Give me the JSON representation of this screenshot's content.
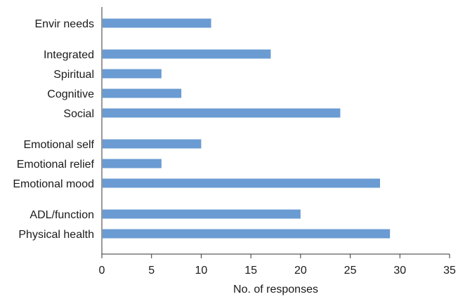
{
  "chart_data": {
    "type": "bar",
    "orientation": "horizontal",
    "categories": [
      "Envir needs",
      "Integrated",
      "Spiritual",
      "Cognitive",
      "Social",
      "Emotional self",
      "Emotional relief",
      "Emotional mood",
      "ADL/function",
      "Physical health"
    ],
    "values": [
      11,
      17,
      6,
      8,
      24,
      10,
      6,
      28,
      20,
      29
    ],
    "groups": [
      [
        0
      ],
      [
        1,
        2,
        3,
        4
      ],
      [
        5,
        6,
        7
      ],
      [
        8,
        9
      ]
    ],
    "xlabel": "No. of responses",
    "ylabel": "",
    "xlim": [
      0,
      35
    ],
    "xticks": [
      0,
      5,
      10,
      15,
      20,
      25,
      30,
      35
    ],
    "grid": false,
    "bar_color": "#6a9bd2"
  }
}
